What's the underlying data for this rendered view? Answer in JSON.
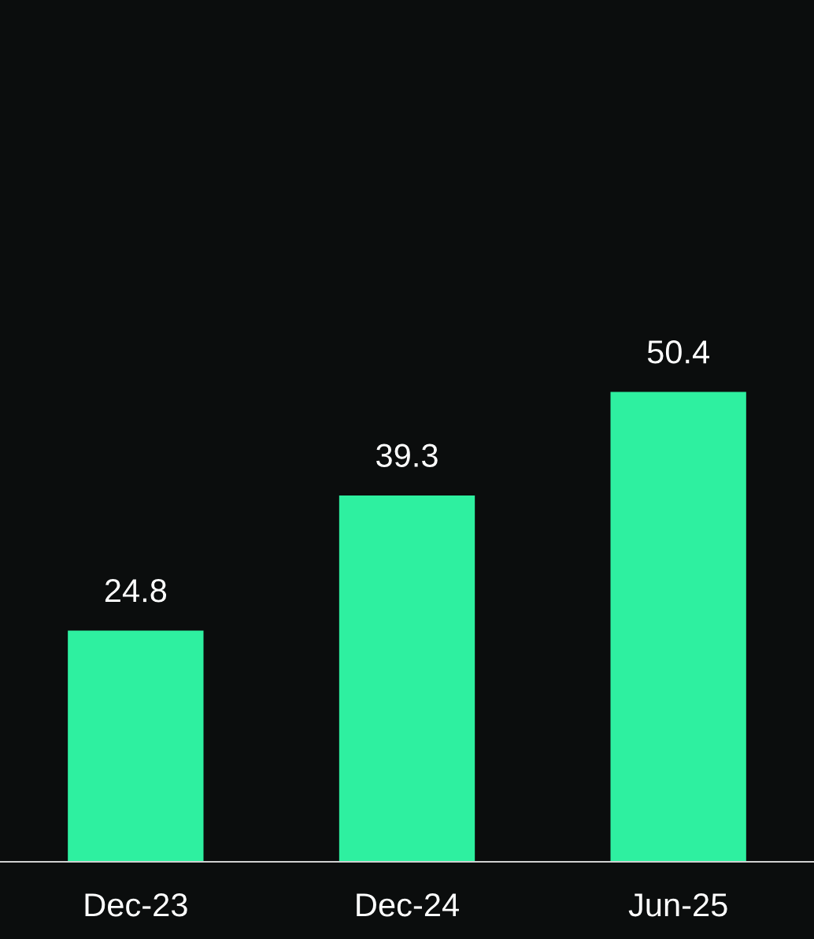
{
  "chart_data": {
    "type": "bar",
    "categories": [
      "Dec-23",
      "Dec-24",
      "Jun-25"
    ],
    "values": [
      24.8,
      39.3,
      50.4
    ],
    "color": "#2ef0a0",
    "data_labels": true,
    "grid": false,
    "legend": false
  }
}
